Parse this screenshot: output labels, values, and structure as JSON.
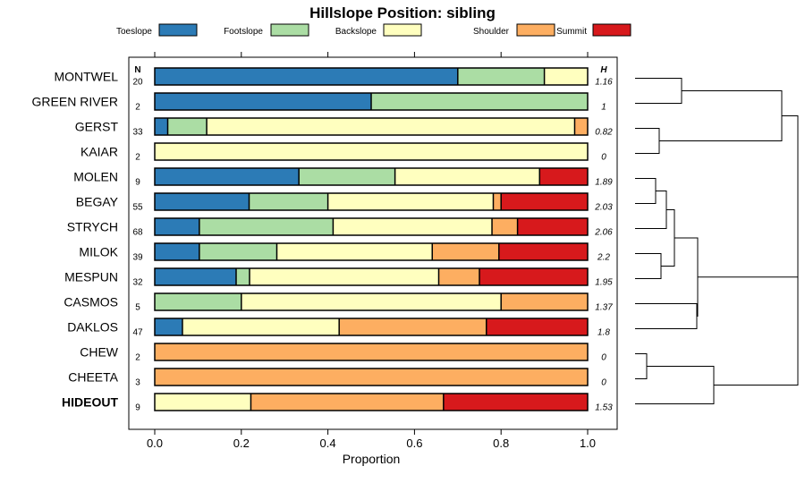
{
  "chart_data": {
    "type": "bar",
    "orientation": "horizontal",
    "stacked": true,
    "title": "Hillslope Position: sibling",
    "xlabel": "Proportion",
    "xlim": [
      0,
      1
    ],
    "xticks": [
      "0.0",
      "0.2",
      "0.4",
      "0.6",
      "0.8",
      "1.0"
    ],
    "n_header": "N",
    "h_header": "H",
    "legend_position": "top",
    "series": [
      {
        "name": "Toeslope",
        "color": "#2C7BB6"
      },
      {
        "name": "Footslope",
        "color": "#ABDDA4"
      },
      {
        "name": "Backslope",
        "color": "#FFFFBF"
      },
      {
        "name": "Shoulder",
        "color": "#FDAE61"
      },
      {
        "name": "Summit",
        "color": "#D7191C"
      }
    ],
    "rows": [
      {
        "label": "MONTWEL",
        "n": "20",
        "h": "1.16",
        "bold": false,
        "values": [
          0.7,
          0.2,
          0.1,
          0.0,
          0.0
        ]
      },
      {
        "label": "GREEN RIVER",
        "n": "2",
        "h": "1",
        "bold": false,
        "values": [
          0.5,
          0.5,
          0.0,
          0.0,
          0.0
        ]
      },
      {
        "label": "GERST",
        "n": "33",
        "h": "0.82",
        "bold": false,
        "values": [
          0.03,
          0.09,
          0.85,
          0.03,
          0.0
        ]
      },
      {
        "label": "KAIAR",
        "n": "2",
        "h": "0",
        "bold": false,
        "values": [
          0.0,
          0.0,
          1.0,
          0.0,
          0.0
        ]
      },
      {
        "label": "MOLEN",
        "n": "9",
        "h": "1.89",
        "bold": false,
        "values": [
          0.333,
          0.222,
          0.334,
          0.0,
          0.111
        ]
      },
      {
        "label": "BEGAY",
        "n": "55",
        "h": "2.03",
        "bold": false,
        "values": [
          0.218,
          0.182,
          0.382,
          0.018,
          0.2
        ]
      },
      {
        "label": "STRYCH",
        "n": "68",
        "h": "2.06",
        "bold": false,
        "values": [
          0.103,
          0.309,
          0.367,
          0.059,
          0.162
        ]
      },
      {
        "label": "MILOK",
        "n": "39",
        "h": "2.2",
        "bold": false,
        "values": [
          0.103,
          0.179,
          0.359,
          0.154,
          0.205
        ]
      },
      {
        "label": "MESPUN",
        "n": "32",
        "h": "1.95",
        "bold": false,
        "values": [
          0.188,
          0.031,
          0.437,
          0.094,
          0.25
        ]
      },
      {
        "label": "CASMOS",
        "n": "5",
        "h": "1.37",
        "bold": false,
        "values": [
          0.0,
          0.2,
          0.6,
          0.2,
          0.0
        ]
      },
      {
        "label": "DAKLOS",
        "n": "47",
        "h": "1.8",
        "bold": false,
        "values": [
          0.064,
          0.0,
          0.362,
          0.34,
          0.234
        ]
      },
      {
        "label": "CHEW",
        "n": "2",
        "h": "0",
        "bold": false,
        "values": [
          0.0,
          0.0,
          0.0,
          1.0,
          0.0
        ]
      },
      {
        "label": "CHEETA",
        "n": "3",
        "h": "0",
        "bold": false,
        "values": [
          0.0,
          0.0,
          0.0,
          1.0,
          0.0
        ]
      },
      {
        "label": "HIDEOUT",
        "n": "9",
        "h": "1.53",
        "bold": true,
        "values": [
          0.0,
          0.0,
          0.222,
          0.445,
          0.333
        ]
      }
    ]
  }
}
